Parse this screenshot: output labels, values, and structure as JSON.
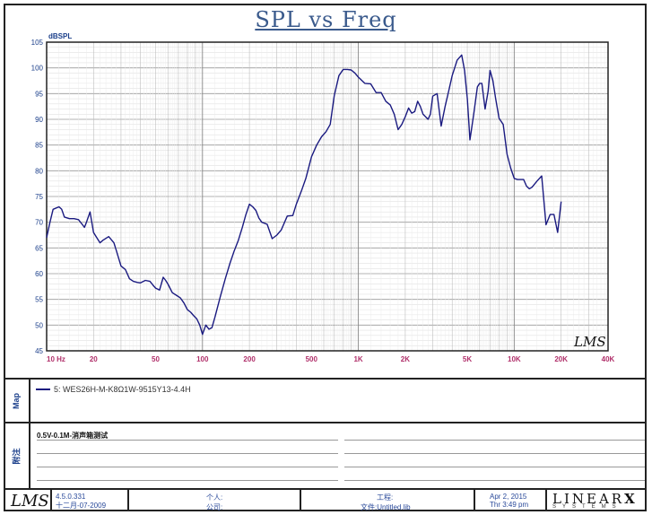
{
  "chart_data": {
    "type": "line",
    "title": "SPL vs Freq",
    "ylabel": "dBSPL",
    "x_scale": "log",
    "xlim": [
      10,
      40000
    ],
    "ylim": [
      45,
      105
    ],
    "grid": true,
    "y_ticks": [
      "105",
      "100",
      "95",
      "90",
      "85",
      "80",
      "75",
      "70",
      "65",
      "60",
      "55",
      "50",
      "45"
    ],
    "x_ticks": [
      {
        "v": 10,
        "t": "10  Hz"
      },
      {
        "v": 20,
        "t": "20"
      },
      {
        "v": 50,
        "t": "50"
      },
      {
        "v": 100,
        "t": "100"
      },
      {
        "v": 200,
        "t": "200"
      },
      {
        "v": 500,
        "t": "500"
      },
      {
        "v": 1000,
        "t": "1K"
      },
      {
        "v": 2000,
        "t": "2K"
      },
      {
        "v": 5000,
        "t": "5K"
      },
      {
        "v": 10000,
        "t": "10K"
      },
      {
        "v": 20000,
        "t": "20K"
      },
      {
        "v": 40000,
        "t": "40K"
      }
    ],
    "series": [
      {
        "name": "5: WES26H-M-K8Ω1W-9515Y13-4.4H",
        "color": "#1a1a80",
        "x": [
          10,
          10.5,
          11,
          12,
          12.5,
          13,
          14,
          15,
          16,
          17,
          17.5,
          18,
          19,
          20,
          22,
          23,
          25,
          27,
          28,
          30,
          32,
          34,
          36,
          38,
          40,
          43,
          46,
          48,
          50,
          53,
          56,
          58,
          60,
          64,
          68,
          72,
          76,
          80,
          84,
          88,
          92,
          96,
          100,
          105,
          110,
          115,
          120,
          130,
          140,
          150,
          160,
          170,
          180,
          190,
          200,
          210,
          220,
          230,
          240,
          260,
          280,
          300,
          320,
          350,
          380,
          400,
          430,
          460,
          500,
          540,
          580,
          620,
          660,
          700,
          750,
          800,
          850,
          900,
          950,
          1000,
          1100,
          1200,
          1300,
          1400,
          1500,
          1600,
          1700,
          1800,
          1900,
          2000,
          2100,
          2200,
          2300,
          2400,
          2500,
          2600,
          2700,
          2800,
          2900,
          3000,
          3200,
          3400,
          3600,
          3800,
          4000,
          4300,
          4600,
          4800,
          5000,
          5200,
          5500,
          5800,
          6000,
          6200,
          6500,
          6800,
          7000,
          7300,
          7600,
          8000,
          8500,
          9000,
          9500,
          10000,
          10500,
          11000,
          11500,
          12000,
          12500,
          13000,
          14000,
          15000,
          16000,
          17000,
          18000,
          19000,
          20000
        ],
        "y": [
          67,
          70,
          72.5,
          73,
          72.5,
          71,
          70.7,
          70.7,
          70.5,
          69.5,
          69,
          70,
          72,
          68,
          66,
          66.5,
          67.2,
          66,
          64.5,
          61.5,
          60.8,
          59,
          58.5,
          58.3,
          58.2,
          58.7,
          58.5,
          57.8,
          57.2,
          56.8,
          59.3,
          58.7,
          58,
          56.3,
          55.8,
          55.3,
          54.3,
          53,
          52.5,
          51.8,
          51.2,
          50,
          48.2,
          50,
          49.2,
          49.5,
          51.5,
          55.5,
          59,
          62,
          64.5,
          66.5,
          69,
          71.5,
          73.5,
          73,
          72.3,
          70.8,
          70,
          69.6,
          66.8,
          67.5,
          68.5,
          71.2,
          71.3,
          73.5,
          76,
          78.5,
          82.7,
          85,
          86.6,
          87.6,
          89,
          94.6,
          98.5,
          99.7,
          99.7,
          99.6,
          99,
          98.2,
          97,
          96.9,
          95.2,
          95.2,
          93.5,
          92.8,
          91,
          88,
          89,
          90.5,
          92.2,
          91.2,
          91.5,
          93.5,
          92.5,
          91,
          90.5,
          90,
          91,
          94.5,
          95,
          88.7,
          92.5,
          95.5,
          98.5,
          101.5,
          102.5,
          99.5,
          94,
          86,
          91,
          96.3,
          97,
          97,
          92,
          95.5,
          99.5,
          97.5,
          94,
          90.2,
          89,
          83.2,
          80.5,
          78.5,
          78.3,
          78.3,
          78.3,
          77,
          76.5,
          76.8,
          78,
          79,
          69.5,
          71.5,
          71.5,
          68,
          74
        ]
      }
    ]
  },
  "legend": {
    "label": "Map",
    "entry": "5: WES26H-M-K8Ω1W-9515Y13-4.4H"
  },
  "notes": {
    "label": "附注",
    "text": "0.5V-0.1M-消声箱测试"
  },
  "footer": {
    "logo_text": "LMS",
    "version": "4.5.0.331",
    "version_date": "十二月-07-2009",
    "personal": "个人:",
    "company": "公司:",
    "project": "工程:",
    "file": "文件:Untitled.lib",
    "date": "Apr  2, 2015",
    "time": "Thr  3:49 pm",
    "brand": "LINEAR",
    "brand_x": "X",
    "brand_sub": "SYSTEMS"
  },
  "watermark": "LMS"
}
